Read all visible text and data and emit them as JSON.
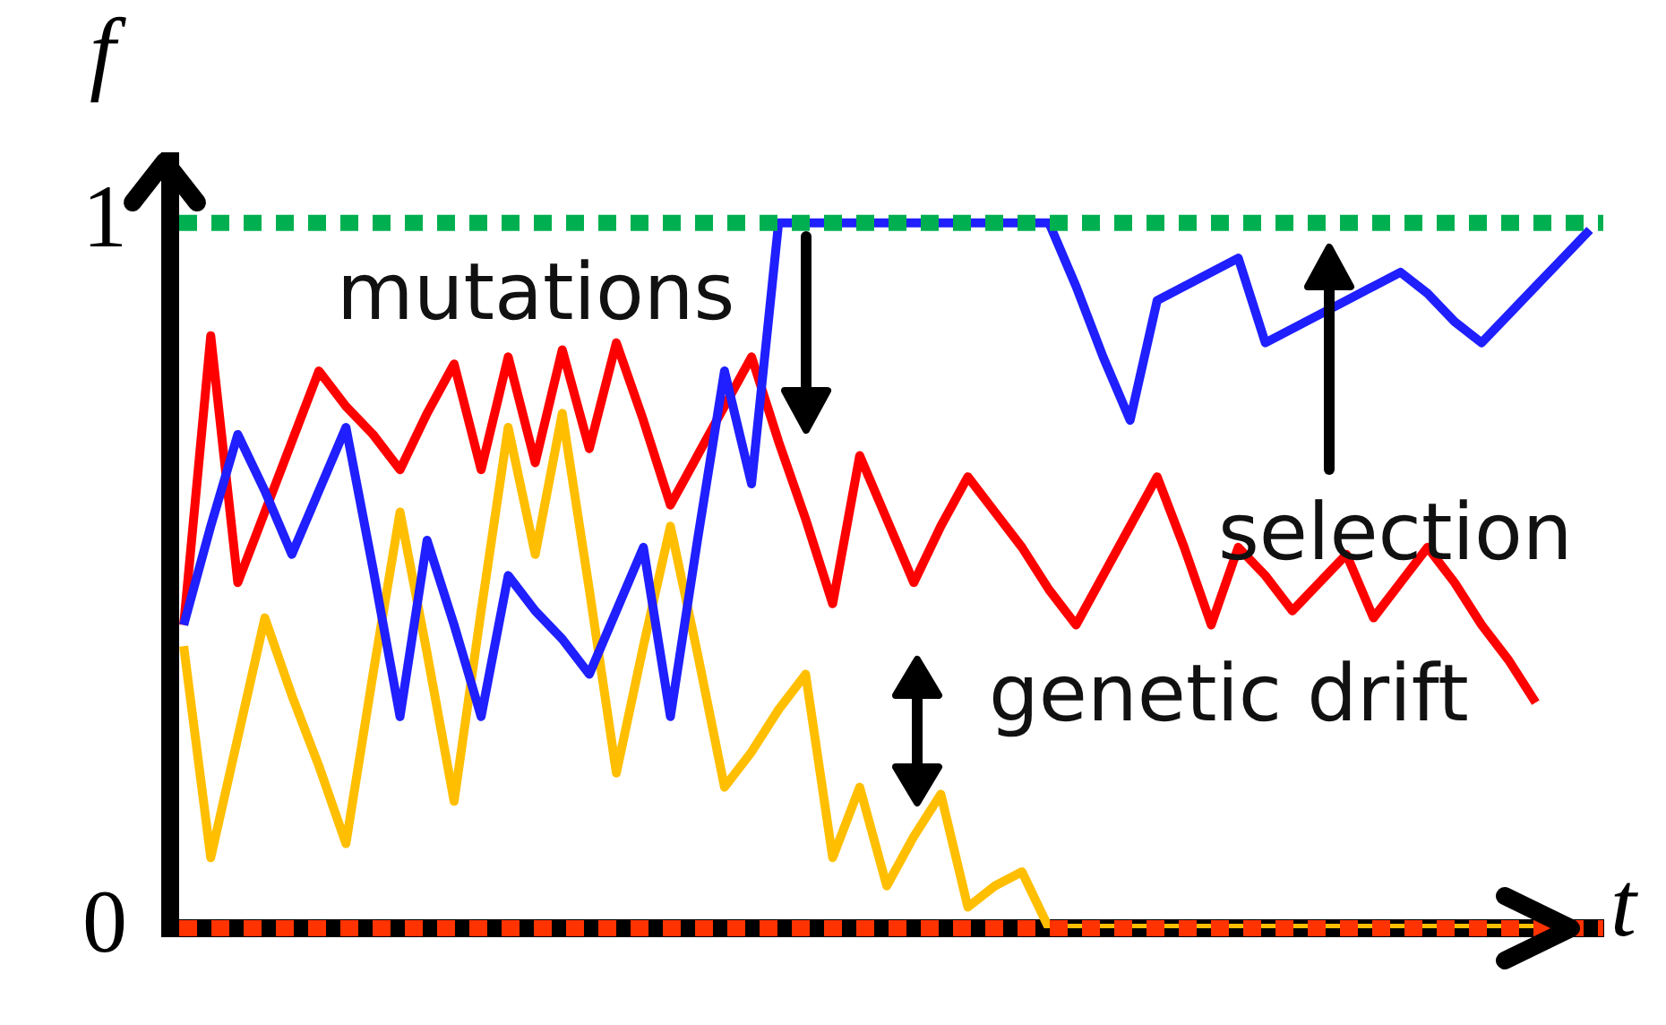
{
  "chart_data": {
    "type": "line",
    "xlabel": "t",
    "ylabel": "f",
    "categories": [
      null,
      null,
      null,
      null,
      null,
      null,
      null,
      null,
      null,
      null,
      null,
      null,
      null,
      null,
      null,
      null,
      null,
      null,
      null,
      null,
      null,
      null,
      null,
      null,
      null,
      null,
      null,
      null,
      null,
      null,
      null,
      null,
      null,
      null,
      null,
      null,
      null,
      null,
      null,
      null,
      null,
      null,
      null,
      null,
      null,
      null,
      null,
      null,
      null,
      null,
      null,
      null,
      null
    ],
    "ylim": [
      0,
      1.1
    ],
    "yticks": [
      0,
      1
    ],
    "tick_labels": "y",
    "grid": false,
    "legend": false,
    "marker": "none",
    "line_style": "solid",
    "series": [
      {
        "color": "#1f1fff",
        "values": [
          0.43,
          0.57,
          0.7,
          0.62,
          0.53,
          0.62,
          0.71,
          0.51,
          0.3,
          0.55,
          0.43,
          0.3,
          0.5,
          0.45,
          0.41,
          0.36,
          0.45,
          0.54,
          0.3,
          0.55,
          0.79,
          0.63,
          1,
          1,
          1,
          1,
          1,
          1,
          1,
          1,
          1,
          1,
          1,
          0.91,
          0.81,
          0.72,
          0.89,
          0.91,
          0.93,
          0.95,
          0.83,
          0.85,
          0.87,
          0.89,
          0.91,
          0.93,
          0.9,
          0.86,
          0.83,
          0.87,
          0.91,
          0.95,
          0.99
        ]
      },
      {
        "color": "#ff0000",
        "values": [
          0.43,
          0.84,
          0.49,
          0.59,
          0.69,
          0.79,
          0.74,
          0.7,
          0.65,
          0.73,
          0.8,
          0.65,
          0.81,
          0.66,
          0.82,
          0.68,
          0.83,
          0.72,
          0.6,
          0.67,
          0.74,
          0.81,
          0.69,
          0.58,
          0.46,
          0.67,
          0.58,
          0.49,
          0.57,
          0.64,
          0.59,
          0.54,
          0.48,
          0.43,
          0.5,
          0.57,
          0.64,
          0.54,
          0.43,
          0.54,
          0.5,
          0.45,
          0.49,
          0.53,
          0.44,
          0.49,
          0.54,
          0.49,
          0.43,
          0.38,
          0.32,
          null,
          null
        ]
      },
      {
        "color": "#ffbf00",
        "values": [
          0.4,
          0.1,
          0.27,
          0.44,
          0.33,
          0.23,
          0.12,
          0.36,
          0.59,
          0.39,
          0.18,
          0.45,
          0.71,
          0.53,
          0.73,
          0.48,
          0.22,
          0.4,
          0.57,
          0.39,
          0.2,
          0.25,
          0.31,
          0.36,
          0.1,
          0.2,
          0.06,
          0.13,
          0.19,
          0.03,
          0.06,
          0.08,
          0,
          0,
          0,
          0,
          0,
          0,
          0,
          0,
          0,
          0,
          0,
          0,
          0,
          0,
          0,
          0,
          0,
          0,
          0,
          null,
          null
        ]
      }
    ],
    "ref_lines": [
      {
        "axis": "y",
        "value": 1,
        "color": "#00b050",
        "line_style": "dotted"
      },
      {
        "axis": "y",
        "value": 0,
        "color": "#ff3300",
        "line_style": "dotted"
      }
    ],
    "annotations": [
      "mutations",
      "selection",
      "genetic drift"
    ]
  }
}
